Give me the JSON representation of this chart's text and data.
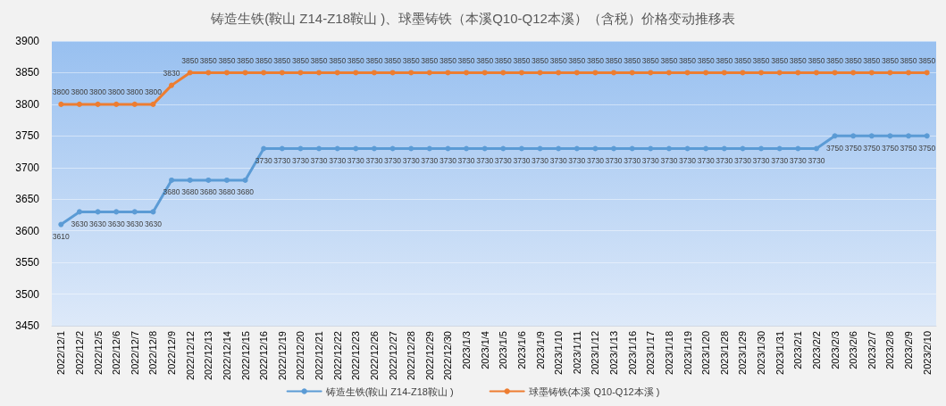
{
  "chart_data": {
    "type": "line",
    "title": "铸造生铁(鞍山 Z14-Z18鞍山 )、球墨铸铁（本溪Q10-Q12本溪）（含税）价格变动推移表",
    "categories": [
      "2022/12/1",
      "2022/12/2",
      "2022/12/5",
      "2022/12/6",
      "2022/12/7",
      "2022/12/8",
      "2022/12/9",
      "2022/12/12",
      "2022/12/13",
      "2022/12/14",
      "2022/12/15",
      "2022/12/16",
      "2022/12/19",
      "2022/12/20",
      "2022/12/21",
      "2022/12/22",
      "2022/12/23",
      "2022/12/26",
      "2022/12/27",
      "2022/12/28",
      "2022/12/29",
      "2022/12/30",
      "2023/1/3",
      "2023/1/4",
      "2023/1/5",
      "2023/1/6",
      "2023/1/9",
      "2023/1/10",
      "2023/1/11",
      "2023/1/12",
      "2023/1/13",
      "2023/1/16",
      "2023/1/17",
      "2023/1/18",
      "2023/1/19",
      "2023/1/20",
      "2023/1/28",
      "2023/1/29",
      "2023/1/30",
      "2023/1/31",
      "2023/2/1",
      "2023/2/2",
      "2023/2/3",
      "2023/2/6",
      "2023/2/7",
      "2023/2/8",
      "2023/2/9",
      "2023/2/10"
    ],
    "series": [
      {
        "name": "铸造生铁(鞍山 Z14-Z18鞍山 )",
        "color": "#5b9bd5",
        "values": [
          3610,
          3630,
          3630,
          3630,
          3630,
          3630,
          3680,
          3680,
          3680,
          3680,
          3680,
          3730,
          3730,
          3730,
          3730,
          3730,
          3730,
          3730,
          3730,
          3730,
          3730,
          3730,
          3730,
          3730,
          3730,
          3730,
          3730,
          3730,
          3730,
          3730,
          3730,
          3730,
          3730,
          3730,
          3730,
          3730,
          3730,
          3730,
          3730,
          3730,
          3730,
          3730,
          3750,
          3750,
          3750,
          3750,
          3750,
          3750
        ]
      },
      {
        "name": "球墨铸铁(本溪 Q10-Q12本溪 )",
        "color": "#ed7d31",
        "values": [
          3800,
          3800,
          3800,
          3800,
          3800,
          3800,
          3830,
          3850,
          3850,
          3850,
          3850,
          3850,
          3850,
          3850,
          3850,
          3850,
          3850,
          3850,
          3850,
          3850,
          3850,
          3850,
          3850,
          3850,
          3850,
          3850,
          3850,
          3850,
          3850,
          3850,
          3850,
          3850,
          3850,
          3850,
          3850,
          3850,
          3850,
          3850,
          3850,
          3850,
          3850,
          3850,
          3850,
          3850,
          3850,
          3850,
          3850,
          3850
        ]
      }
    ],
    "ylim": [
      3450,
      3900
    ],
    "yticks": [
      3450,
      3500,
      3550,
      3600,
      3650,
      3700,
      3750,
      3800,
      3850,
      3900
    ],
    "grid": "y",
    "legend": "bottom",
    "marker": "circle",
    "line_style": "solid",
    "data_labels": true
  }
}
